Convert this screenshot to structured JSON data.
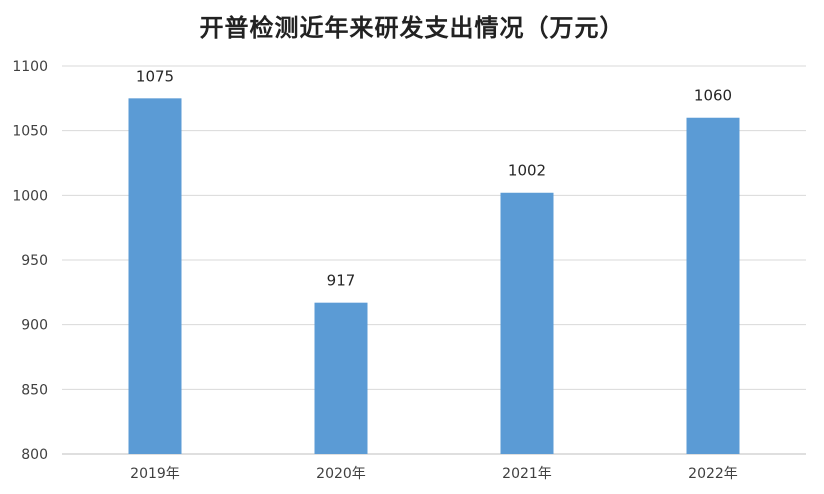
{
  "chart_data": {
    "type": "bar",
    "title": "开普检测近年来研发支出情况（万元）",
    "categories": [
      "2019年",
      "2020年",
      "2021年",
      "2022年"
    ],
    "values": [
      1075,
      917,
      1002,
      1060
    ],
    "data_labels": [
      "1075",
      "917",
      "1002",
      "1060"
    ],
    "xlabel": "",
    "ylabel": "",
    "ylim": [
      800,
      1100
    ],
    "yticks": [
      800,
      850,
      900,
      950,
      1000,
      1050,
      1100
    ],
    "grid": true,
    "legend": "none",
    "bar_color": "#5b9bd5",
    "grid_color": "#d9d9d9"
  }
}
